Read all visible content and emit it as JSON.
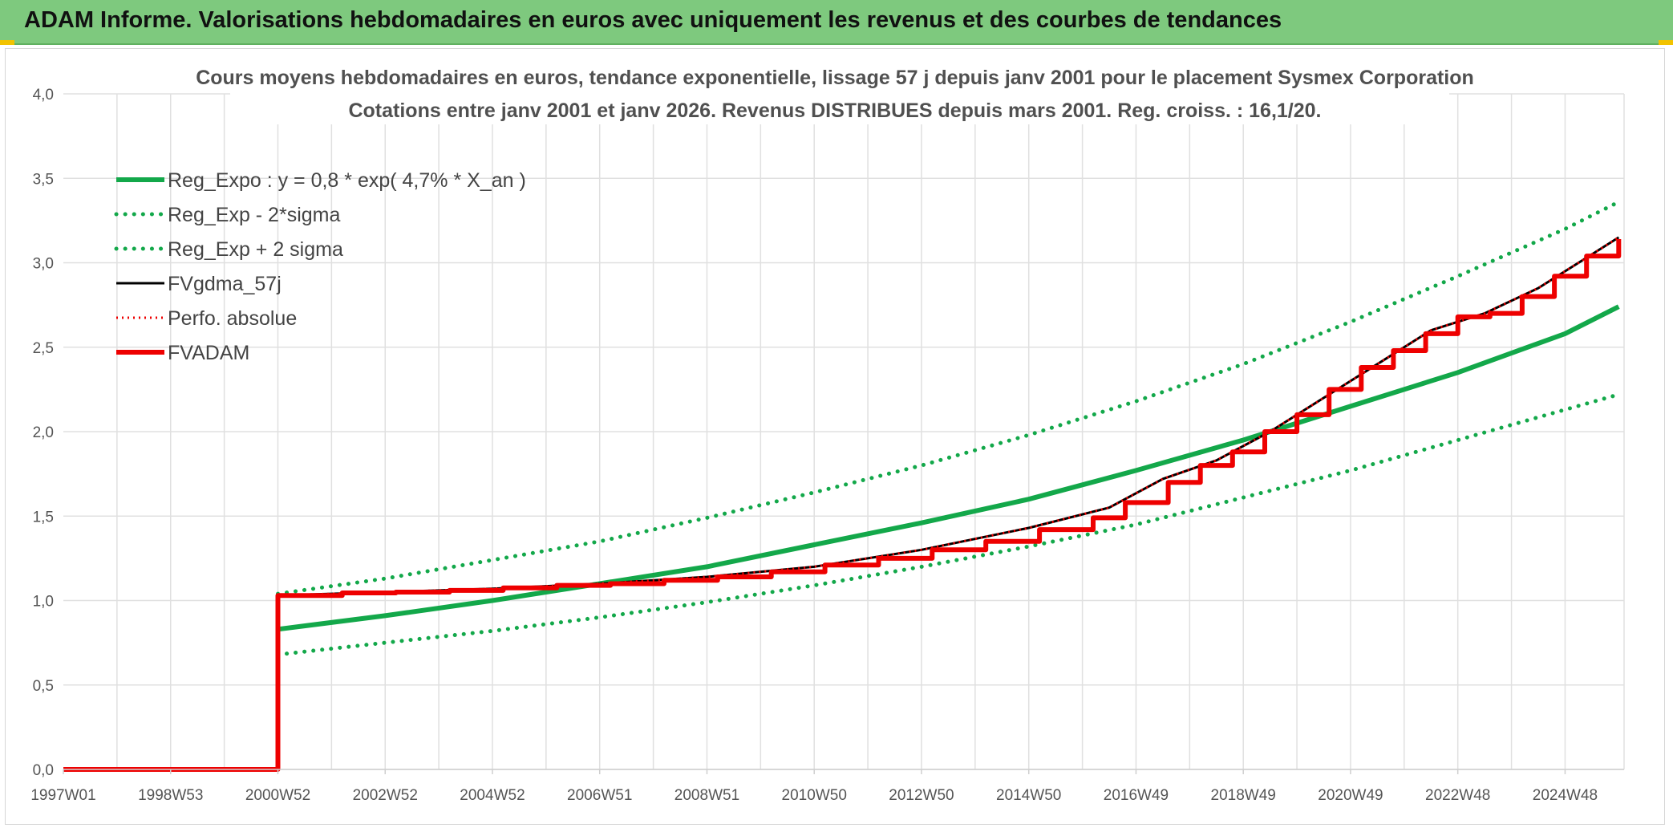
{
  "header": {
    "title": "ADAM Informe. Valorisations hebdomadaires en euros avec uniquement les revenus et des courbes de tendances"
  },
  "colors": {
    "banner": "#7ec97e",
    "trend_green": "#13a84a",
    "fv_black": "#000000",
    "fvadam_red": "#ee0000",
    "gridline": "#e0e0e0"
  },
  "chart_data": {
    "type": "line",
    "title": "Cours moyens hebdomadaires en euros, tendance exponentielle, lissage 57 j depuis janv 2001 pour le placement Sysmex Corporation",
    "subtitle": "Cotations entre janv 2001 et janv 2026. Revenus DISTRIBUES depuis mars 2001. Reg. croiss. : 16,1/20.",
    "xlabel": "",
    "ylabel": "",
    "x_tick_labels": [
      "1997W01",
      "1998W53",
      "2000W52",
      "2002W52",
      "2004W52",
      "2006W51",
      "2008W51",
      "2010W50",
      "2012W50",
      "2014W50",
      "2016W49",
      "2018W49",
      "2020W49",
      "2022W48",
      "2024W48"
    ],
    "y_tick_labels": [
      "0,0",
      "0,5",
      "1,0",
      "1,5",
      "2,0",
      "2,5",
      "3,0",
      "3,5",
      "4,0"
    ],
    "xlim": [
      1997.0,
      2026.1
    ],
    "ylim": [
      0,
      4.0
    ],
    "grid": true,
    "legend_position": "top-left",
    "series": [
      {
        "name": "Reg_Expo : y = 0,8 * exp( 4,7% *  X_an )",
        "style": "solid-green",
        "x": [
          2001.0,
          2003.0,
          2005.0,
          2007.0,
          2009.0,
          2011.0,
          2013.0,
          2015.0,
          2017.0,
          2019.0,
          2021.0,
          2023.0,
          2025.0,
          2026.0
        ],
        "y": [
          0.83,
          0.91,
          1.0,
          1.1,
          1.2,
          1.33,
          1.46,
          1.6,
          1.77,
          1.95,
          2.15,
          2.35,
          2.58,
          2.74
        ]
      },
      {
        "name": "Reg_Exp - 2*sigma",
        "style": "dotted-green",
        "x": [
          2001.0,
          2003.0,
          2005.0,
          2007.0,
          2009.0,
          2011.0,
          2013.0,
          2015.0,
          2017.0,
          2019.0,
          2021.0,
          2023.0,
          2025.0,
          2026.0
        ],
        "y": [
          0.68,
          0.75,
          0.82,
          0.9,
          0.99,
          1.09,
          1.2,
          1.32,
          1.45,
          1.61,
          1.77,
          1.95,
          2.13,
          2.22
        ]
      },
      {
        "name": "Reg_Exp + 2 sigma",
        "style": "dotted-green",
        "x": [
          2001.0,
          2003.0,
          2005.0,
          2007.0,
          2009.0,
          2011.0,
          2013.0,
          2015.0,
          2017.0,
          2019.0,
          2021.0,
          2023.0,
          2025.0,
          2026.0
        ],
        "y": [
          1.04,
          1.13,
          1.24,
          1.35,
          1.49,
          1.64,
          1.8,
          1.98,
          2.18,
          2.4,
          2.65,
          2.92,
          3.2,
          3.36
        ]
      },
      {
        "name": "FVgdma_57j",
        "style": "solid-black",
        "x": [
          1997.0,
          2001.0,
          2001.0,
          2003.0,
          2005.0,
          2007.0,
          2009.0,
          2011.0,
          2013.0,
          2015.0,
          2016.5,
          2017.5,
          2018.5,
          2019.5,
          2020.5,
          2021.5,
          2022.5,
          2023.5,
          2024.5,
          2025.5,
          2026.0
        ],
        "y": [
          0.0,
          0.0,
          1.03,
          1.05,
          1.07,
          1.1,
          1.14,
          1.2,
          1.3,
          1.43,
          1.55,
          1.72,
          1.83,
          2.0,
          2.2,
          2.4,
          2.6,
          2.7,
          2.85,
          3.05,
          3.15
        ]
      },
      {
        "name": "Perfo. absolue",
        "style": "dotted-red",
        "x": [
          1997.0,
          2001.0,
          2001.0,
          2003.0,
          2005.0,
          2007.0,
          2009.0,
          2011.0,
          2013.0,
          2015.0,
          2016.5,
          2017.5,
          2018.5,
          2019.5,
          2020.5,
          2021.5,
          2022.5,
          2023.5,
          2024.5,
          2025.5,
          2026.0
        ],
        "y": [
          0.0,
          0.0,
          1.03,
          1.05,
          1.07,
          1.1,
          1.14,
          1.2,
          1.3,
          1.43,
          1.55,
          1.72,
          1.83,
          2.0,
          2.2,
          2.4,
          2.6,
          2.7,
          2.85,
          3.05,
          3.15
        ]
      },
      {
        "name": "FVADAM",
        "style": "step-red",
        "x": [
          1997.0,
          2001.0,
          2001.0,
          2002.2,
          2003.2,
          2004.2,
          2005.2,
          2006.2,
          2007.2,
          2008.2,
          2009.2,
          2010.2,
          2011.2,
          2012.2,
          2013.2,
          2014.2,
          2015.2,
          2016.2,
          2016.8,
          2017.6,
          2018.2,
          2018.8,
          2019.4,
          2020.0,
          2020.6,
          2021.2,
          2021.8,
          2022.4,
          2023.0,
          2023.6,
          2024.2,
          2024.8,
          2025.4,
          2026.0
        ],
        "y": [
          0.0,
          0.0,
          1.03,
          1.045,
          1.05,
          1.06,
          1.075,
          1.09,
          1.1,
          1.12,
          1.14,
          1.17,
          1.21,
          1.25,
          1.3,
          1.35,
          1.42,
          1.49,
          1.58,
          1.7,
          1.8,
          1.88,
          2.0,
          2.1,
          2.25,
          2.38,
          2.48,
          2.58,
          2.68,
          2.7,
          2.8,
          2.92,
          3.04,
          3.14
        ]
      }
    ]
  }
}
